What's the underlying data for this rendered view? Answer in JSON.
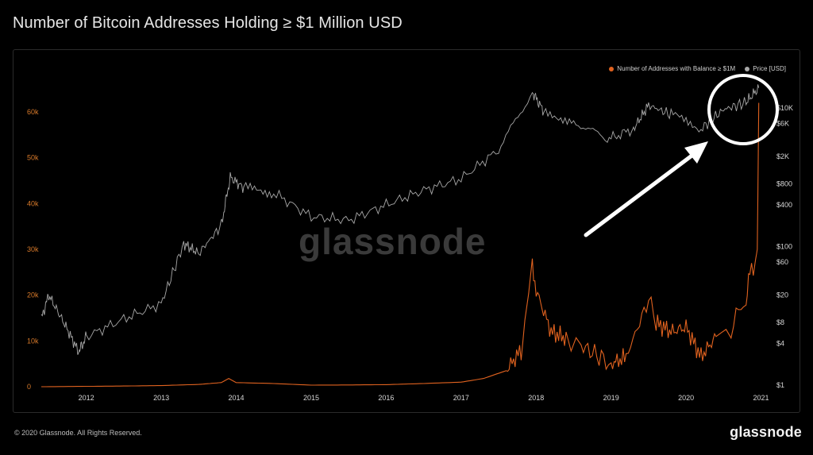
{
  "page": {
    "title": "Number of Bitcoin Addresses Holding ≥ $1 Million USD",
    "copyright": "© 2020 Glassnode. All Rights Reserved.",
    "brand": "glassnode",
    "watermark": "glassnode"
  },
  "colors": {
    "addresses": "#e0621f",
    "price": "#a8a8a8",
    "annotation": "#ffffff"
  },
  "chart_data": {
    "type": "line",
    "title": "Number of Bitcoin Addresses Holding ≥ $1 Million USD",
    "legend_position": "top-right",
    "x_ticks": [
      "2012",
      "2013",
      "2014",
      "2015",
      "2016",
      "2017",
      "2018",
      "2019",
      "2020",
      "2021"
    ],
    "y_left_ticks": [
      "0",
      "10k",
      "20k",
      "30k",
      "40k",
      "50k",
      "60k"
    ],
    "y_right_ticks": [
      "$1",
      "$4",
      "$8",
      "$20",
      "$60",
      "$100",
      "$400",
      "$800",
      "$2K",
      "$6K",
      "$10K"
    ],
    "y_left_range": [
      0,
      60000
    ],
    "y_right_scale": "log",
    "series": [
      {
        "name": "Number of Addresses with Balance ≥ $1M",
        "axis": "left",
        "x": [
          "2011.4",
          "2012.0",
          "2012.5",
          "2013.0",
          "2013.5",
          "2013.8",
          "2013.9",
          "2014.0",
          "2014.5",
          "2015.0",
          "2015.5",
          "2016.0",
          "2016.5",
          "2017.0",
          "2017.3",
          "2017.6",
          "2017.8",
          "2017.95",
          "2018.0",
          "2018.2",
          "2018.4",
          "2018.6",
          "2018.9",
          "2019.0",
          "2019.2",
          "2019.5",
          "2019.6",
          "2019.8",
          "2020.0",
          "2020.2",
          "2020.4",
          "2020.6",
          "2020.7",
          "2020.8",
          "2020.85",
          "2020.92",
          "2020.95",
          "2020.97"
        ],
        "y": [
          0,
          80,
          150,
          250,
          500,
          900,
          1800,
          900,
          700,
          350,
          380,
          450,
          700,
          1000,
          1800,
          3500,
          8000,
          26000,
          21000,
          12000,
          10500,
          9000,
          6000,
          5000,
          6500,
          19000,
          14000,
          12000,
          13000,
          6500,
          11000,
          12500,
          16500,
          19000,
          25000,
          27000,
          30000,
          62000
        ]
      },
      {
        "name": "Price [USD]",
        "axis": "right",
        "x": [
          "2011.4",
          "2011.5",
          "2011.7",
          "2011.9",
          "2012.0",
          "2012.5",
          "2013.0",
          "2013.3",
          "2013.5",
          "2013.8",
          "2013.92",
          "2014.1",
          "2014.5",
          "2015.0",
          "2015.5",
          "2016.0",
          "2016.5",
          "2017.0",
          "2017.5",
          "2017.95",
          "2018.1",
          "2018.5",
          "2018.95",
          "2019.3",
          "2019.5",
          "2019.8",
          "2020.2",
          "2020.5",
          "2020.8",
          "2020.97"
        ],
        "y": [
          9,
          20,
          8,
          3,
          5,
          9,
          15,
          110,
          80,
          200,
          1000,
          700,
          600,
          270,
          240,
          400,
          650,
          950,
          2500,
          17000,
          9000,
          6500,
          3500,
          5000,
          11000,
          8000,
          5000,
          9500,
          12000,
          19500
        ]
      }
    ]
  }
}
